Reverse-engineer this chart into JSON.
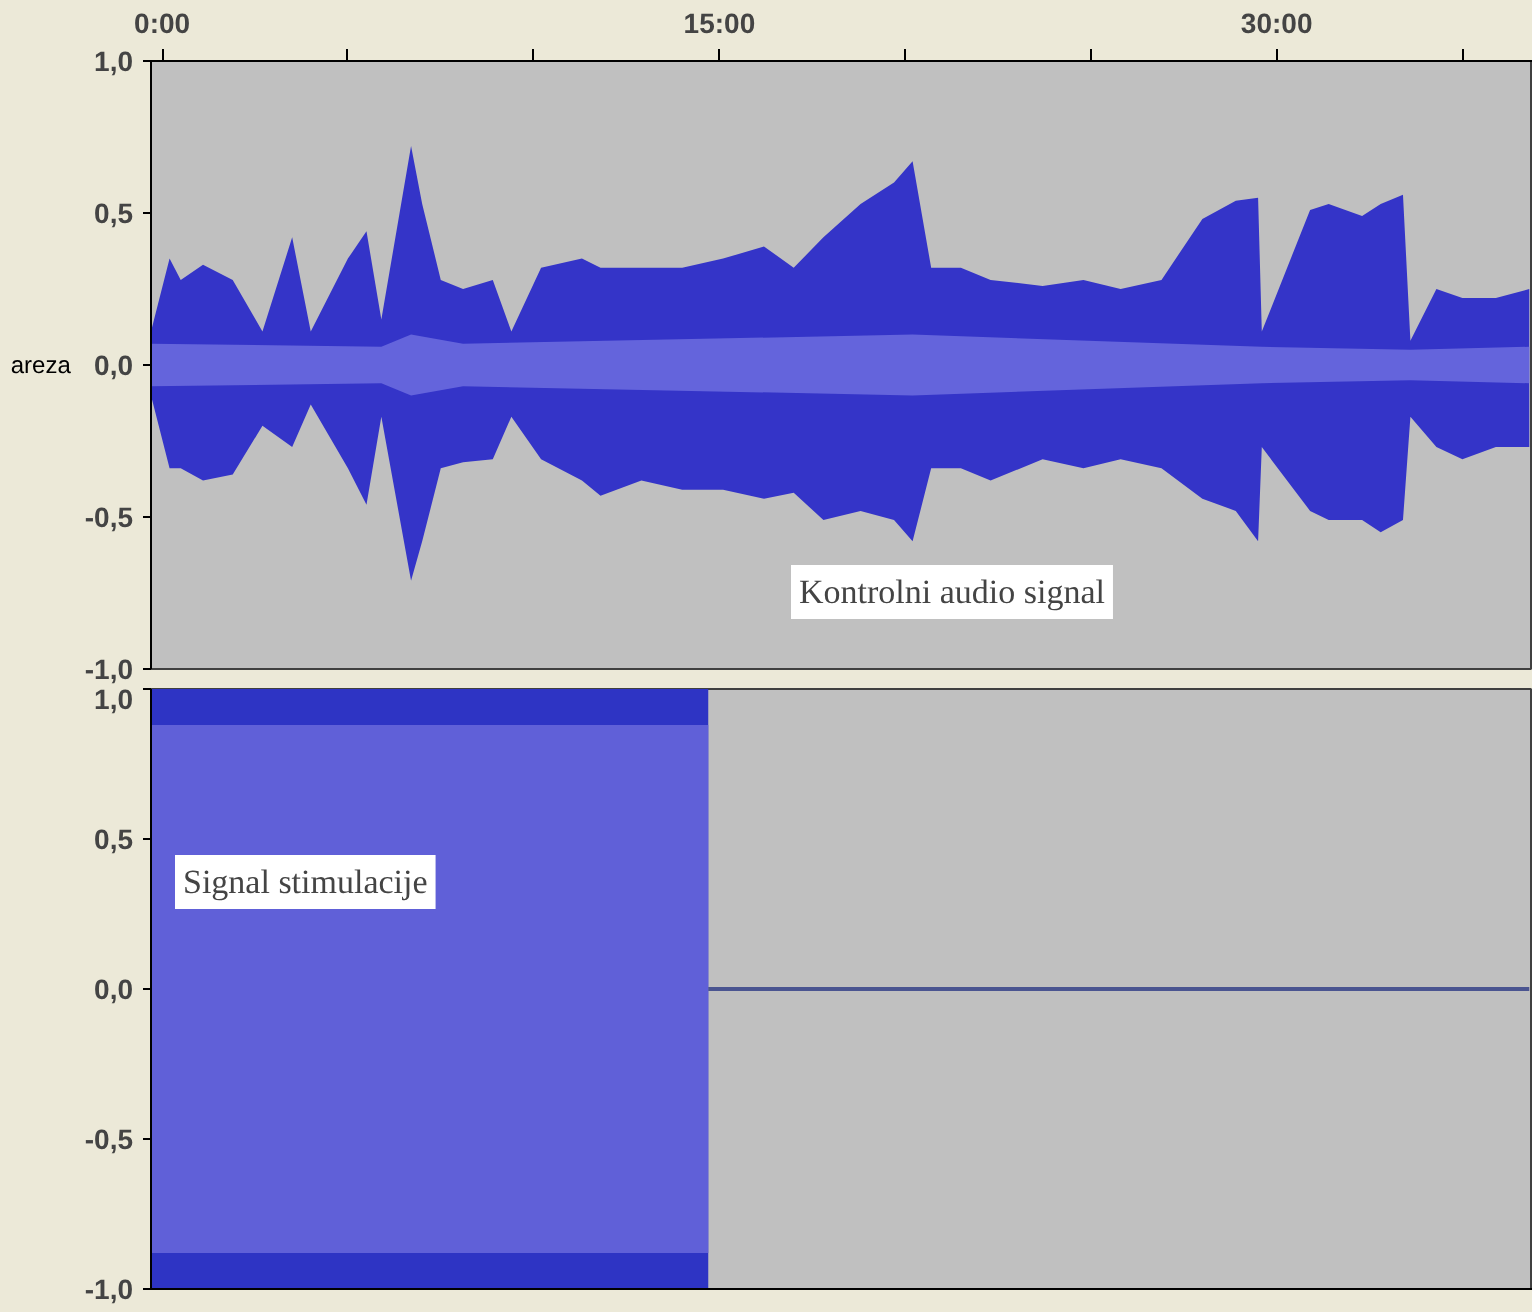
{
  "chart_data": [
    {
      "type": "area",
      "ylabel": "areza",
      "annotations": [
        "Kontrolni audio signal"
      ],
      "xlim": [
        -0.3,
        36.9
      ],
      "xticks": [
        {
          "value": 0,
          "label": "0:00"
        },
        {
          "value": 5,
          "label": null
        },
        {
          "value": 10,
          "label": null
        },
        {
          "value": 15,
          "label": "15:00"
        },
        {
          "value": 20,
          "label": null
        },
        {
          "value": 25,
          "label": null
        },
        {
          "value": 30,
          "label": "30:00"
        },
        {
          "value": 35,
          "label": null
        }
      ],
      "ylim": [
        -1,
        1
      ],
      "yticks": [
        {
          "value": -1,
          "label": "-1,0"
        },
        {
          "value": -0.5,
          "label": "-0,5"
        },
        {
          "value": 0,
          "label": "0,0"
        },
        {
          "value": 0.5,
          "label": "0,5"
        },
        {
          "value": 1,
          "label": "1,0"
        }
      ],
      "x": [
        -0.3,
        0.2,
        0.5,
        1.1,
        1.9,
        2.7,
        3.5,
        4.0,
        5.0,
        5.5,
        5.9,
        6.7,
        7.0,
        7.5,
        8.1,
        8.9,
        9.4,
        10.2,
        11.3,
        11.8,
        12.9,
        14.0,
        15.1,
        16.2,
        17.0,
        17.8,
        18.8,
        19.7,
        20.2,
        20.7,
        21.5,
        22.3,
        23.7,
        24.8,
        25.8,
        26.9,
        28.0,
        28.9,
        29.5,
        29.6,
        30.9,
        31.4,
        32.3,
        32.8,
        33.4,
        33.6,
        34.3,
        35.0,
        35.9,
        36.8
      ],
      "series": [
        {
          "color": "#3434c8",
          "values": [
            0.11,
            0.35,
            0.28,
            0.33,
            0.28,
            0.11,
            0.42,
            0.11,
            0.35,
            0.44,
            0.15,
            0.72,
            0.53,
            0.28,
            0.25,
            0.28,
            0.11,
            0.32,
            0.35,
            0.32,
            0.32,
            0.32,
            0.35,
            0.39,
            0.32,
            0.42,
            0.53,
            0.6,
            0.67,
            0.32,
            0.32,
            0.28,
            0.26,
            0.28,
            0.25,
            0.28,
            0.48,
            0.54,
            0.55,
            0.11,
            0.51,
            0.53,
            0.49,
            0.53,
            0.56,
            0.08,
            0.25,
            0.22,
            0.22,
            0.25
          ]
        },
        {
          "color": "#3434c8",
          "values": [
            -0.1,
            -0.34,
            -0.34,
            -0.38,
            -0.36,
            -0.2,
            -0.27,
            -0.13,
            -0.34,
            -0.46,
            -0.17,
            -0.71,
            -0.58,
            -0.34,
            -0.32,
            -0.31,
            -0.17,
            -0.31,
            -0.38,
            -0.43,
            -0.38,
            -0.41,
            -0.41,
            -0.44,
            -0.42,
            -0.51,
            -0.48,
            -0.51,
            -0.58,
            -0.34,
            -0.34,
            -0.38,
            -0.31,
            -0.34,
            -0.31,
            -0.34,
            -0.44,
            -0.48,
            -0.58,
            -0.27,
            -0.48,
            -0.51,
            -0.51,
            -0.55,
            -0.51,
            -0.17,
            -0.27,
            -0.31,
            -0.27,
            -0.27
          ]
        },
        {
          "color": "#6464dc",
          "x": [
            -0.3,
            5.9,
            6.7,
            8.1,
            20.2,
            29.6,
            33.6,
            36.8
          ],
          "values": [
            0.07,
            0.06,
            0.1,
            0.07,
            0.1,
            0.06,
            0.05,
            0.06
          ]
        },
        {
          "color": "#6464dc",
          "x": [
            -0.3,
            5.9,
            6.7,
            8.1,
            20.2,
            29.6,
            33.6,
            36.8
          ],
          "values": [
            -0.07,
            -0.06,
            -0.1,
            -0.07,
            -0.1,
            -0.06,
            -0.05,
            -0.06
          ]
        }
      ]
    },
    {
      "type": "area",
      "annotations": [
        "Signal stimulacije"
      ],
      "tick_labels": "y",
      "xlim": [
        -0.3,
        36.9
      ],
      "ylim": [
        -1,
        1
      ],
      "yticks": [
        {
          "value": -1,
          "label": "-1,0"
        },
        {
          "value": -0.5,
          "label": "-0,5"
        },
        {
          "value": 0,
          "label": "0,0"
        },
        {
          "value": 0.5,
          "label": "0,5"
        },
        {
          "value": 1,
          "label": "1,0"
        }
      ],
      "x": [
        -0.3,
        14.7
      ],
      "series": [
        {
          "color": "#2e34c4",
          "values": [
            1,
            1
          ]
        },
        {
          "color": "#2e34c4",
          "values": [
            -1,
            -1
          ]
        },
        {
          "color": "#6060d8",
          "values": [
            0.88,
            0.88
          ]
        },
        {
          "color": "#6060d8",
          "values": [
            -0.88,
            -0.88
          ]
        },
        {
          "type": "line",
          "color": "#4a5490",
          "x": [
            14.7,
            36.8
          ],
          "values": [
            0,
            0
          ]
        }
      ]
    }
  ]
}
